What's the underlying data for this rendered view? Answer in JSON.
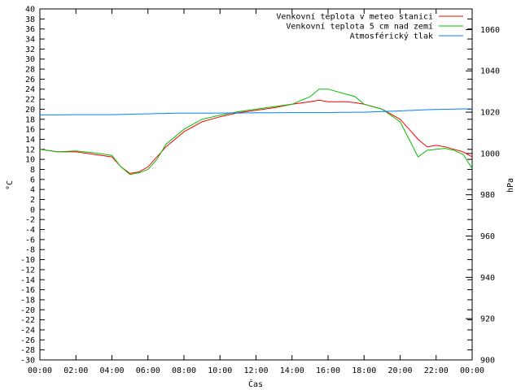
{
  "chart_data": {
    "type": "line",
    "xlabel": "Čas",
    "ylabel": "°C",
    "y2label": "hPa",
    "x_range": [
      "00:00",
      "00:00"
    ],
    "x_ticks": [
      "00:00",
      "02:00",
      "04:00",
      "06:00",
      "08:00",
      "10:00",
      "12:00",
      "14:00",
      "16:00",
      "18:00",
      "20:00",
      "22:00",
      "00:00"
    ],
    "ylim": [
      -30,
      40
    ],
    "y_ticks": [
      40,
      38,
      36,
      34,
      32,
      30,
      28,
      26,
      24,
      22,
      20,
      18,
      16,
      14,
      12,
      10,
      8,
      6,
      4,
      2,
      0,
      -2,
      -4,
      -6,
      -8,
      -10,
      -12,
      -14,
      -16,
      -18,
      -20,
      -22,
      -24,
      -26,
      -28,
      -30
    ],
    "y2lim": [
      900,
      1070
    ],
    "y2_ticks": [
      1060,
      1040,
      1020,
      1000,
      980,
      960,
      940,
      920,
      900
    ],
    "grid": false,
    "legend_position": "top-right",
    "x_hours": [
      0,
      1,
      2,
      3,
      4,
      4.5,
      5,
      5.5,
      6,
      6.5,
      7,
      7.5,
      8,
      9,
      10,
      11,
      12,
      13,
      14,
      15,
      15.5,
      16,
      16.5,
      17,
      17.5,
      18,
      19,
      20,
      20.5,
      21,
      21.5,
      22,
      22.5,
      23,
      23.5,
      24
    ],
    "series": [
      {
        "name": "Venkovní teplota v meteo stanici",
        "color": "#ff0000",
        "axis": "y",
        "values": [
          12,
          11.5,
          11.5,
          11,
          10.5,
          8.5,
          7.2,
          7.5,
          8.5,
          10.5,
          12.5,
          14,
          15.5,
          17.5,
          18.5,
          19.3,
          19.8,
          20.3,
          21,
          21.5,
          21.8,
          21.5,
          21.5,
          21.5,
          21.3,
          21,
          20,
          18,
          16,
          14,
          12.5,
          12.8,
          12.5,
          12,
          11.5,
          10.5
        ]
      },
      {
        "name": "Venkovní teplota 5 cm nad zemí",
        "color": "#00c000",
        "axis": "y",
        "values": [
          12,
          11.5,
          11.7,
          11.3,
          10.8,
          8.5,
          7,
          7.3,
          8,
          10,
          13,
          14.5,
          16,
          18,
          18.8,
          19.5,
          20,
          20.5,
          21,
          22.5,
          24,
          24,
          23.5,
          23,
          22.5,
          21,
          20,
          17.5,
          14,
          10.5,
          11.8,
          12,
          12.2,
          11.8,
          11,
          8.2
        ]
      },
      {
        "name": "Atmosférický tlak",
        "color": "#0080ff",
        "axis": "y2",
        "values": [
          1018.7,
          1018.7,
          1018.8,
          1018.8,
          1018.8,
          1018.9,
          1019,
          1019.1,
          1019.2,
          1019.3,
          1019.4,
          1019.5,
          1019.5,
          1019.5,
          1019.6,
          1019.6,
          1019.7,
          1019.7,
          1019.8,
          1019.8,
          1019.8,
          1019.8,
          1019.9,
          1019.9,
          1020,
          1020,
          1020.3,
          1020.6,
          1020.8,
          1021,
          1021.2,
          1021.3,
          1021.4,
          1021.5,
          1021.6,
          1021.6
        ]
      }
    ]
  }
}
